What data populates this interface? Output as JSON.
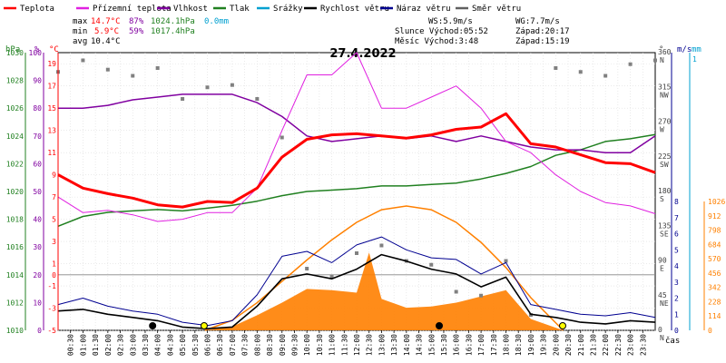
{
  "chart_data": {
    "type": "line",
    "title": "27.4.2022",
    "xlabel": "čas",
    "x_ticks": [
      "00:30",
      "01:00",
      "01:30",
      "02:00",
      "02:30",
      "03:00",
      "03:30",
      "04:00",
      "04:30",
      "05:00",
      "05:30",
      "06:00",
      "06:30",
      "07:00",
      "07:30",
      "08:00",
      "08:30",
      "09:00",
      "09:30",
      "10:00",
      "10:30",
      "11:00",
      "11:30",
      "12:00",
      "12:30",
      "13:00",
      "13:30",
      "14:00",
      "14:30",
      "15:00",
      "15:30",
      "16:00",
      "16:30",
      "17:00",
      "17:30",
      "18:00",
      "18:30",
      "19:00",
      "19:30",
      "20:00",
      "20:30",
      "21:00",
      "21:30",
      "22:00",
      "22:30",
      "23:00",
      "23:30"
    ],
    "legend": [
      {
        "label": "Teplota",
        "color": "#ff0000"
      },
      {
        "label": "Přízemní teplota",
        "color": "#e020e0"
      },
      {
        "label": "Vlhkost",
        "color": "#8000a0"
      },
      {
        "label": "Tlak",
        "color": "#208020"
      },
      {
        "label": "Srážky",
        "color": "#00a0d0"
      },
      {
        "label": "Rychlost větru",
        "color": "#000000"
      },
      {
        "label": "Náraz větru",
        "color": "#000090"
      },
      {
        "label": "Směr větru",
        "color": "#606060"
      }
    ],
    "stats": {
      "max_label": "max",
      "max_temp": "14.7°C",
      "max_hum": "87%",
      "max_press": "1024.1hPa",
      "rain": "0.0mm",
      "min_label": "min",
      "min_temp": "5.9°C",
      "min_hum": "59%",
      "min_press": "1017.4hPa",
      "avg_label": "avg",
      "avg_temp": "10.4°C",
      "ws": "WS:5.9m/s",
      "wg": "WG:7.7m/s",
      "sun": "Slunce Východ:05:52",
      "sun_set": "Západ:20:17",
      "moon": "Měsíc  Východ:3:48",
      "moon_set": "Západ:15:19"
    },
    "axes": {
      "hpa_title": "hPa",
      "pct_title": "%",
      "c_title": "°C",
      "hpa_ticks": [
        "1010",
        "1012",
        "1014",
        "1016",
        "1018",
        "1020",
        "1022",
        "1024",
        "1026",
        "1028",
        "1030"
      ],
      "pct_ticks": [
        "0",
        "10",
        "20",
        "30",
        "40",
        "50",
        "60",
        "70",
        "80",
        "90",
        "100"
      ],
      "c_ticks": [
        "-5",
        "-3",
        "-1",
        "1",
        "3",
        "5",
        "7",
        "9",
        "11",
        "13",
        "15",
        "17",
        "19"
      ],
      "c_zero_label": "0",
      "dir_title": "°",
      "dir_ticks": [
        "0",
        "45",
        "90",
        "135",
        "180",
        "225",
        "270",
        "315",
        "360"
      ],
      "dir_labels": [
        "N",
        "NE",
        "E",
        "SE",
        "S",
        "SW",
        "W",
        "NW",
        "N"
      ],
      "ms_title": "m/s",
      "ms_ticks": [
        "0",
        "1",
        "2",
        "3",
        "4",
        "5",
        "6",
        "7",
        "8"
      ],
      "mm_title": "mm",
      "mm_top": "1",
      "wm2_ticks": [
        "0",
        "114",
        "228",
        "342",
        "456",
        "570",
        "684",
        "798",
        "912",
        "1026"
      ]
    },
    "series": [
      {
        "name": "Teplota",
        "unit": "°C",
        "x_hours": [
          0,
          1,
          2,
          3,
          4,
          5,
          6,
          7,
          8,
          9,
          10,
          11,
          12,
          13,
          14,
          15,
          16,
          17,
          18,
          19,
          20,
          21,
          22,
          23,
          24
        ],
        "values": [
          9.0,
          7.8,
          7.3,
          6.9,
          6.3,
          6.1,
          6.6,
          6.5,
          7.8,
          10.6,
          12.2,
          12.6,
          12.7,
          12.5,
          12.3,
          12.6,
          13.1,
          13.3,
          14.5,
          11.8,
          11.5,
          10.8,
          10.1,
          10.0,
          9.2
        ]
      },
      {
        "name": "Přízemní teplota",
        "unit": "°C",
        "x_hours": [
          0,
          1,
          2,
          3,
          4,
          5,
          6,
          7,
          8,
          9,
          10,
          11,
          12,
          13,
          14,
          15,
          16,
          17,
          18,
          19,
          20,
          21,
          22,
          23,
          24
        ],
        "values": [
          7.0,
          5.6,
          5.8,
          5.4,
          4.8,
          5.0,
          5.6,
          5.6,
          7.8,
          13.0,
          18.0,
          18.0,
          20.0,
          15.0,
          15.0,
          16.0,
          17.0,
          15.0,
          12.0,
          11.0,
          9.0,
          7.5,
          6.5,
          6.2,
          5.5
        ]
      },
      {
        "name": "Vlhkost",
        "unit": "%",
        "x_hours": [
          0,
          1,
          2,
          3,
          4,
          5,
          6,
          7,
          8,
          9,
          10,
          11,
          12,
          13,
          14,
          15,
          16,
          17,
          18,
          19,
          20,
          21,
          22,
          23,
          24
        ],
        "values": [
          80,
          80,
          81,
          83,
          84,
          85,
          85,
          85,
          82,
          77,
          70,
          68,
          69,
          70,
          69,
          70,
          68,
          70,
          68,
          66,
          65,
          65,
          64,
          64,
          70
        ]
      },
      {
        "name": "Tlak",
        "unit": "hPa",
        "x_hours": [
          0,
          1,
          2,
          3,
          4,
          5,
          6,
          7,
          8,
          9,
          10,
          11,
          12,
          13,
          14,
          15,
          16,
          17,
          18,
          19,
          20,
          21,
          22,
          23,
          24
        ],
        "values": [
          1017.5,
          1018.2,
          1018.5,
          1018.6,
          1018.7,
          1018.6,
          1018.8,
          1019.0,
          1019.3,
          1019.7,
          1020.0,
          1020.1,
          1020.2,
          1020.4,
          1020.4,
          1020.5,
          1020.6,
          1020.9,
          1021.3,
          1021.8,
          1022.6,
          1023.0,
          1023.6,
          1023.8,
          1024.1
        ]
      },
      {
        "name": "Rychlost větru",
        "unit": "m/s",
        "x_hours": [
          0,
          1,
          2,
          3,
          4,
          5,
          6,
          7,
          8,
          9,
          10,
          11,
          12,
          13,
          14,
          15,
          16,
          17,
          18,
          19,
          20,
          21,
          22,
          23,
          24
        ],
        "values": [
          1.2,
          1.3,
          1.0,
          0.8,
          0.6,
          0.2,
          0.1,
          0.2,
          1.5,
          3.2,
          3.5,
          3.2,
          3.8,
          4.7,
          4.3,
          3.8,
          3.5,
          2.7,
          3.3,
          1.0,
          0.8,
          0.5,
          0.4,
          0.6,
          0.5
        ]
      },
      {
        "name": "Náraz větru",
        "unit": "m/s",
        "x_hours": [
          0,
          1,
          2,
          3,
          4,
          5,
          6,
          7,
          8,
          9,
          10,
          11,
          12,
          13,
          14,
          15,
          16,
          17,
          18,
          19,
          20,
          21,
          22,
          23,
          24
        ],
        "values": [
          1.6,
          2.0,
          1.5,
          1.2,
          1.0,
          0.5,
          0.3,
          0.6,
          2.2,
          4.6,
          4.9,
          4.2,
          5.3,
          5.8,
          5.0,
          4.5,
          4.4,
          3.5,
          4.2,
          1.6,
          1.3,
          1.0,
          0.9,
          1.1,
          0.8
        ]
      },
      {
        "name": "Směr větru",
        "unit": "°",
        "type": "scatter",
        "x_hours": [
          0,
          1,
          2,
          3,
          4,
          5,
          6,
          7,
          8,
          9,
          10,
          11,
          12,
          13,
          14,
          15,
          16,
          17,
          18,
          19,
          20,
          21,
          22,
          23,
          24
        ],
        "values": [
          335,
          350,
          338,
          330,
          340,
          300,
          315,
          318,
          300,
          250,
          80,
          70,
          100,
          110,
          90,
          85,
          50,
          45,
          90,
          20,
          340,
          335,
          330,
          345,
          350
        ]
      },
      {
        "name": "Solární záření",
        "unit": "W/m²",
        "type": "area",
        "x_hours": [
          5.9,
          7,
          8,
          9,
          10,
          11,
          12,
          12.5,
          13,
          14,
          15,
          16,
          17,
          18,
          19,
          20.3
        ],
        "values": [
          0,
          30,
          120,
          220,
          330,
          320,
          300,
          620,
          250,
          180,
          190,
          220,
          270,
          320,
          90,
          0
        ]
      },
      {
        "name": "Teoretické záření",
        "unit": "W/m²",
        "type": "line",
        "x_hours": [
          5.9,
          7,
          8,
          9,
          10,
          11,
          12,
          13,
          14,
          15,
          16,
          17,
          18,
          19,
          20.3
        ],
        "values": [
          0,
          80,
          220,
          390,
          560,
          720,
          860,
          960,
          990,
          960,
          860,
          700,
          500,
          260,
          0
        ]
      }
    ],
    "markers": [
      {
        "type": "moonrise",
        "hour": 3.8
      },
      {
        "type": "sunrise",
        "hour": 5.87
      },
      {
        "type": "moonset",
        "hour": 15.32
      },
      {
        "type": "sunset",
        "hour": 20.28
      }
    ],
    "ylim_c": [
      -5,
      20
    ],
    "ylim_pct": [
      0,
      100
    ],
    "ylim_hpa": [
      1010,
      1030
    ],
    "ylim_ms": [
      0,
      8
    ],
    "ylim_dir": [
      0,
      360
    ],
    "ylim_wm2": [
      0,
      1026
    ],
    "grid": true
  }
}
